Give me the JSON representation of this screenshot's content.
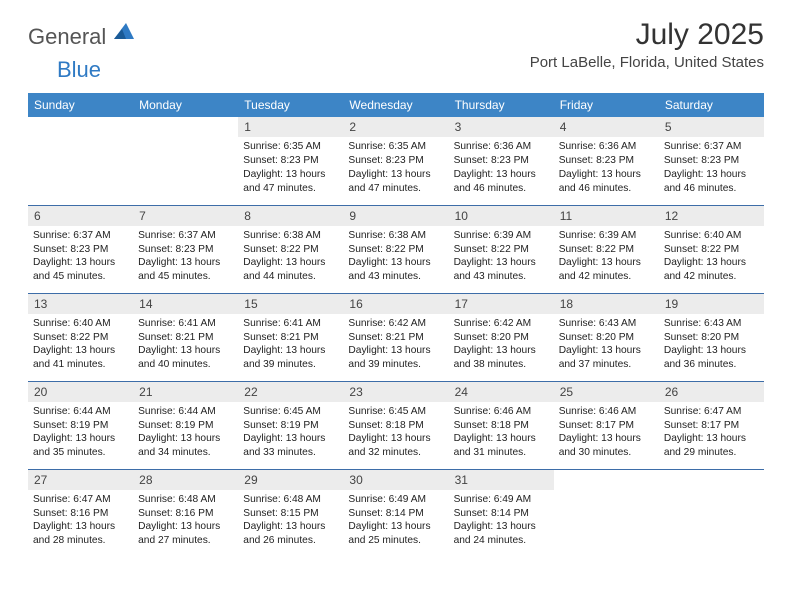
{
  "logo": {
    "general": "General",
    "blue": "Blue"
  },
  "title": "July 2025",
  "location": "Port LaBelle, Florida, United States",
  "accent_color": "#3d85c6",
  "border_color": "#3d6da8",
  "daynum_bg": "#ececec",
  "weekdays": [
    "Sunday",
    "Monday",
    "Tuesday",
    "Wednesday",
    "Thursday",
    "Friday",
    "Saturday"
  ],
  "weeks": [
    [
      null,
      null,
      {
        "n": "1",
        "sr": "6:35 AM",
        "ss": "8:23 PM",
        "dl": "13 hours and 47 minutes."
      },
      {
        "n": "2",
        "sr": "6:35 AM",
        "ss": "8:23 PM",
        "dl": "13 hours and 47 minutes."
      },
      {
        "n": "3",
        "sr": "6:36 AM",
        "ss": "8:23 PM",
        "dl": "13 hours and 46 minutes."
      },
      {
        "n": "4",
        "sr": "6:36 AM",
        "ss": "8:23 PM",
        "dl": "13 hours and 46 minutes."
      },
      {
        "n": "5",
        "sr": "6:37 AM",
        "ss": "8:23 PM",
        "dl": "13 hours and 46 minutes."
      }
    ],
    [
      {
        "n": "6",
        "sr": "6:37 AM",
        "ss": "8:23 PM",
        "dl": "13 hours and 45 minutes."
      },
      {
        "n": "7",
        "sr": "6:37 AM",
        "ss": "8:23 PM",
        "dl": "13 hours and 45 minutes."
      },
      {
        "n": "8",
        "sr": "6:38 AM",
        "ss": "8:22 PM",
        "dl": "13 hours and 44 minutes."
      },
      {
        "n": "9",
        "sr": "6:38 AM",
        "ss": "8:22 PM",
        "dl": "13 hours and 43 minutes."
      },
      {
        "n": "10",
        "sr": "6:39 AM",
        "ss": "8:22 PM",
        "dl": "13 hours and 43 minutes."
      },
      {
        "n": "11",
        "sr": "6:39 AM",
        "ss": "8:22 PM",
        "dl": "13 hours and 42 minutes."
      },
      {
        "n": "12",
        "sr": "6:40 AM",
        "ss": "8:22 PM",
        "dl": "13 hours and 42 minutes."
      }
    ],
    [
      {
        "n": "13",
        "sr": "6:40 AM",
        "ss": "8:22 PM",
        "dl": "13 hours and 41 minutes."
      },
      {
        "n": "14",
        "sr": "6:41 AM",
        "ss": "8:21 PM",
        "dl": "13 hours and 40 minutes."
      },
      {
        "n": "15",
        "sr": "6:41 AM",
        "ss": "8:21 PM",
        "dl": "13 hours and 39 minutes."
      },
      {
        "n": "16",
        "sr": "6:42 AM",
        "ss": "8:21 PM",
        "dl": "13 hours and 39 minutes."
      },
      {
        "n": "17",
        "sr": "6:42 AM",
        "ss": "8:20 PM",
        "dl": "13 hours and 38 minutes."
      },
      {
        "n": "18",
        "sr": "6:43 AM",
        "ss": "8:20 PM",
        "dl": "13 hours and 37 minutes."
      },
      {
        "n": "19",
        "sr": "6:43 AM",
        "ss": "8:20 PM",
        "dl": "13 hours and 36 minutes."
      }
    ],
    [
      {
        "n": "20",
        "sr": "6:44 AM",
        "ss": "8:19 PM",
        "dl": "13 hours and 35 minutes."
      },
      {
        "n": "21",
        "sr": "6:44 AM",
        "ss": "8:19 PM",
        "dl": "13 hours and 34 minutes."
      },
      {
        "n": "22",
        "sr": "6:45 AM",
        "ss": "8:19 PM",
        "dl": "13 hours and 33 minutes."
      },
      {
        "n": "23",
        "sr": "6:45 AM",
        "ss": "8:18 PM",
        "dl": "13 hours and 32 minutes."
      },
      {
        "n": "24",
        "sr": "6:46 AM",
        "ss": "8:18 PM",
        "dl": "13 hours and 31 minutes."
      },
      {
        "n": "25",
        "sr": "6:46 AM",
        "ss": "8:17 PM",
        "dl": "13 hours and 30 minutes."
      },
      {
        "n": "26",
        "sr": "6:47 AM",
        "ss": "8:17 PM",
        "dl": "13 hours and 29 minutes."
      }
    ],
    [
      {
        "n": "27",
        "sr": "6:47 AM",
        "ss": "8:16 PM",
        "dl": "13 hours and 28 minutes."
      },
      {
        "n": "28",
        "sr": "6:48 AM",
        "ss": "8:16 PM",
        "dl": "13 hours and 27 minutes."
      },
      {
        "n": "29",
        "sr": "6:48 AM",
        "ss": "8:15 PM",
        "dl": "13 hours and 26 minutes."
      },
      {
        "n": "30",
        "sr": "6:49 AM",
        "ss": "8:14 PM",
        "dl": "13 hours and 25 minutes."
      },
      {
        "n": "31",
        "sr": "6:49 AM",
        "ss": "8:14 PM",
        "dl": "13 hours and 24 minutes."
      },
      null,
      null
    ]
  ],
  "labels": {
    "sunrise": "Sunrise:",
    "sunset": "Sunset:",
    "daylight": "Daylight:"
  }
}
